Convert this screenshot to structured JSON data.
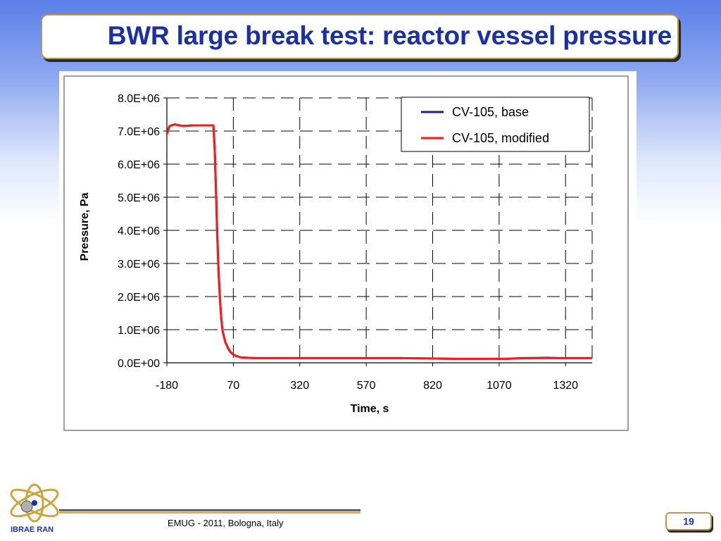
{
  "slide": {
    "title": "BWR large break test: reactor vessel pressure",
    "footer": "EMUG - 2011, Bologna, Italy",
    "page_number": "19",
    "logo_text": "IBRAE RAN",
    "colors": {
      "title": "#1b2fa8",
      "frame": "#b89a4a"
    }
  },
  "chart_data": {
    "type": "line",
    "title": "",
    "xlabel": "Time, s",
    "ylabel": "Pressure, Pa",
    "xlim": [
      -180,
      1420
    ],
    "ylim": [
      0,
      8000000
    ],
    "x_ticks": [
      -180,
      70,
      320,
      570,
      820,
      1070,
      1320
    ],
    "x_tick_labels": [
      "-180",
      "70",
      "320",
      "570",
      "820",
      "1070",
      "1320"
    ],
    "y_ticks": [
      0,
      1000000,
      2000000,
      3000000,
      4000000,
      5000000,
      6000000,
      7000000,
      8000000
    ],
    "y_tick_labels": [
      "0.0E+00",
      "1.0E+06",
      "2.0E+06",
      "3.0E+06",
      "4.0E+06",
      "5.0E+06",
      "6.0E+06",
      "7.0E+06",
      "8.0E+06"
    ],
    "grid": "dashed",
    "legend": "top-right",
    "series": [
      {
        "name": "CV-105, base",
        "color": "#1a237e",
        "x": [
          -180,
          -170,
          -150,
          -120,
          -80,
          -40,
          -5,
          0,
          5,
          10,
          15,
          20,
          25,
          30,
          40,
          50,
          60,
          70,
          80,
          100,
          120,
          150,
          200,
          300,
          500,
          700,
          900,
          1100,
          1150,
          1250,
          1300,
          1420
        ],
        "y": [
          6950000,
          7150000,
          7200000,
          7150000,
          7170000,
          7170000,
          7170000,
          6500000,
          5200000,
          3800000,
          2700000,
          1900000,
          1300000,
          950000,
          620000,
          450000,
          320000,
          250000,
          210000,
          160000,
          150000,
          140000,
          140000,
          140000,
          140000,
          140000,
          120000,
          120000,
          140000,
          150000,
          140000,
          140000
        ]
      },
      {
        "name": "CV-105, modified",
        "color": "#ff1a1a",
        "x": [
          -180,
          -170,
          -150,
          -120,
          -80,
          -40,
          -5,
          0,
          5,
          10,
          15,
          20,
          25,
          30,
          40,
          50,
          60,
          70,
          80,
          100,
          120,
          150,
          200,
          300,
          500,
          700,
          900,
          1100,
          1150,
          1250,
          1300,
          1420
        ],
        "y": [
          6900000,
          7150000,
          7200000,
          7150000,
          7170000,
          7170000,
          7170000,
          6400000,
          5100000,
          3700000,
          2600000,
          1850000,
          1280000,
          930000,
          610000,
          440000,
          310000,
          245000,
          205000,
          160000,
          150000,
          140000,
          140000,
          140000,
          140000,
          140000,
          120000,
          120000,
          135000,
          140000,
          140000,
          140000
        ]
      }
    ]
  }
}
